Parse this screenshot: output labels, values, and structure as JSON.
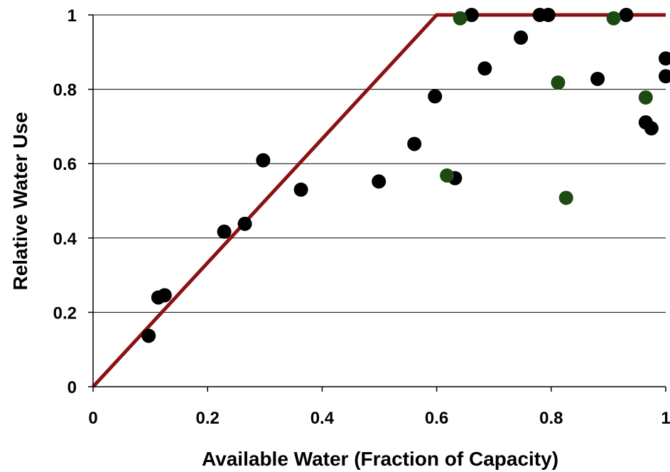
{
  "chart_data": {
    "type": "scatter",
    "xlabel": "Available Water (Fraction of Capacity)",
    "ylabel": "Relative Water Use",
    "xlim": [
      0,
      1
    ],
    "ylim": [
      0,
      1
    ],
    "x_ticks": [
      0,
      0.2,
      0.4,
      0.6,
      0.8,
      1
    ],
    "y_ticks": [
      0,
      0.2,
      0.4,
      0.6,
      0.8,
      1
    ],
    "x_tick_labels": [
      "0",
      "0.2",
      "0.4",
      "0.6",
      "0.8",
      "1"
    ],
    "y_tick_labels": [
      "0",
      "0.2",
      "0.4",
      "0.6",
      "0.8",
      "1"
    ],
    "grid": "horizontal",
    "legend": "none",
    "series": [
      {
        "color": "#000000",
        "marker": "circle",
        "points": [
          [
            0.097,
            0.137
          ],
          [
            0.114,
            0.24
          ],
          [
            0.125,
            0.246
          ],
          [
            0.229,
            0.417
          ],
          [
            0.265,
            0.438
          ],
          [
            0.297,
            0.609
          ],
          [
            0.363,
            0.53
          ],
          [
            0.499,
            0.552
          ],
          [
            0.561,
            0.653
          ],
          [
            0.597,
            0.781
          ],
          [
            0.632,
            0.561
          ],
          [
            0.661,
            1.0
          ],
          [
            0.684,
            0.856
          ],
          [
            0.747,
            0.939
          ],
          [
            0.78,
            1.0
          ],
          [
            0.795,
            1.0
          ],
          [
            0.881,
            0.828
          ],
          [
            0.931,
            1.0
          ],
          [
            0.965,
            0.711
          ],
          [
            0.975,
            0.695
          ],
          [
            1.0,
            0.883
          ],
          [
            1.0,
            0.835
          ]
        ]
      },
      {
        "color": "#1c4a10",
        "marker": "circle",
        "points": [
          [
            0.618,
            0.568
          ],
          [
            0.641,
            0.991
          ],
          [
            0.812,
            0.818
          ],
          [
            0.826,
            0.508
          ],
          [
            0.909,
            0.991
          ],
          [
            0.965,
            0.778
          ]
        ]
      },
      {
        "type": "line",
        "color": "#8b1212",
        "points": [
          [
            0,
            0
          ],
          [
            0.6,
            1
          ],
          [
            1,
            1
          ]
        ]
      }
    ]
  }
}
